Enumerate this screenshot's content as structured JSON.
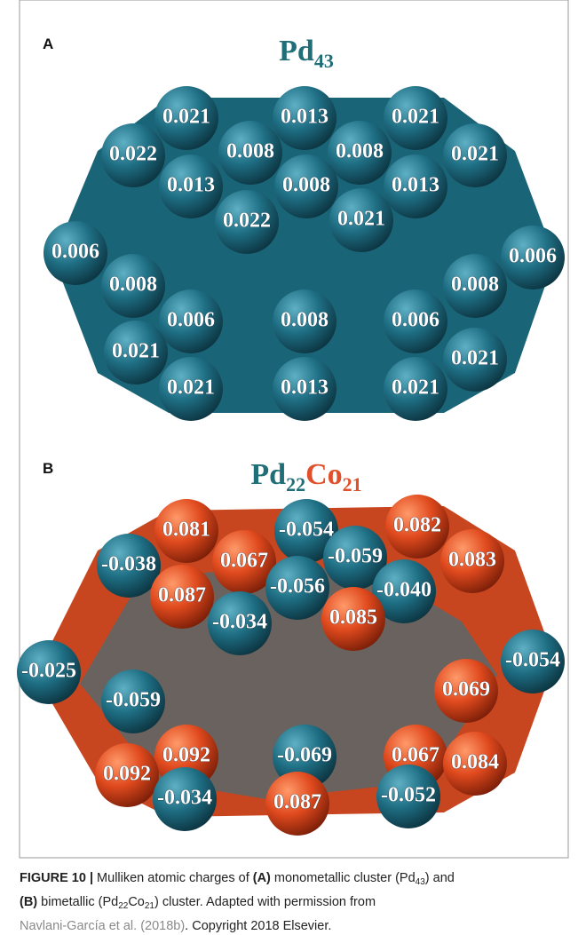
{
  "panels": [
    {
      "letter": "A",
      "title": [
        {
          "text": "Pd",
          "color": "#1f6e78"
        },
        {
          "text": "43",
          "color": "#1f6e78",
          "sub": true
        }
      ],
      "atoms": [
        "0.021",
        "0.013",
        "0.021",
        "0.022",
        "0.008",
        "0.008",
        "0.021",
        "0.013",
        "0.008",
        "0.013",
        "0.022",
        "0.021",
        "0.006",
        "0.006",
        "0.008",
        "0.008",
        "0.006",
        "0.008",
        "0.006",
        "0.021",
        "0.021",
        "0.021",
        "0.013",
        "0.021"
      ]
    },
    {
      "letter": "B",
      "title": [
        {
          "text": "Pd",
          "color": "#1f6e78"
        },
        {
          "text": "22",
          "color": "#1f6e78",
          "sub": true
        },
        {
          "text": "Co",
          "color": "#e0502a"
        },
        {
          "text": "21",
          "color": "#e0502a",
          "sub": true
        }
      ],
      "atoms": [
        "0.081",
        "-0.054",
        "0.082",
        "-0.038",
        "0.067",
        "-0.059",
        "0.083",
        "0.087",
        "-0.056",
        "-0.040",
        "-0.034",
        "0.085",
        "-0.025",
        "-0.054",
        "-0.059",
        "0.069",
        "0.092",
        "-0.069",
        "0.067",
        "0.092",
        "0.084",
        "-0.034",
        "0.087",
        "-0.052"
      ]
    }
  ],
  "caption": {
    "lines": [
      [
        {
          "text": "FIGURE 10 |",
          "bold": true
        },
        {
          "text": " Mulliken atomic charges of "
        },
        {
          "text": "(A)",
          "bold": true
        },
        {
          "text": " monometallic cluster (Pd"
        },
        {
          "text": "43",
          "sub": true
        },
        {
          "text": ") and"
        }
      ],
      [
        {
          "text": "(B)",
          "bold": true
        },
        {
          "text": " bimetallic (Pd"
        },
        {
          "text": "22",
          "sub": true
        },
        {
          "text": "Co"
        },
        {
          "text": "21",
          "sub": true
        },
        {
          "text": ") cluster. Adapted with permission from"
        }
      ],
      [
        {
          "text": "Navlani-García et al. (2018b)",
          "link": true
        },
        {
          "text": ". Copyright 2018 Elsevier."
        }
      ]
    ]
  }
}
